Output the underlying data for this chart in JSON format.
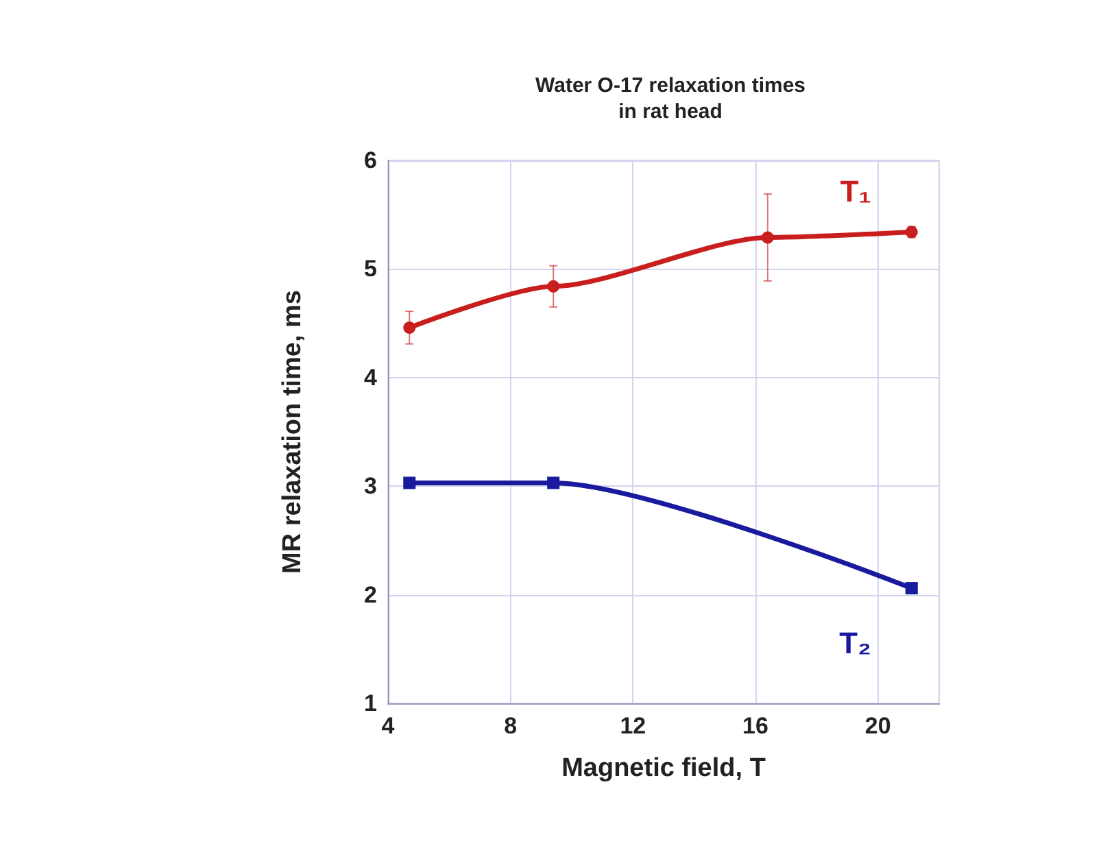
{
  "chart_data": {
    "type": "line",
    "title": "Water O-17 relaxation times\nin rat head",
    "xlabel": "Magnetic field, T",
    "ylabel": "MR relaxation time, ms",
    "series": [
      {
        "name": "T₁",
        "color": "#c81e1e",
        "marker": "circle",
        "x": [
          4.7,
          9.4,
          16.4,
          21.1
        ],
        "values": [
          4.46,
          4.84,
          5.29,
          5.34
        ],
        "errors": [
          0.15,
          0.19,
          0.4,
          0.05
        ]
      },
      {
        "name": "T₂",
        "color": "#1a1a9e",
        "marker": "square",
        "x": [
          4.7,
          9.4,
          21.1
        ],
        "values": [
          3.03,
          3.03,
          2.06
        ]
      }
    ],
    "xlim": [
      4,
      22
    ],
    "xticks": [
      4,
      8,
      12,
      16,
      20
    ],
    "ylim": [
      1,
      6
    ],
    "yticks": [
      1,
      2,
      3,
      4,
      5,
      6
    ],
    "grid": true,
    "line_style": "solid",
    "legend": false
  }
}
